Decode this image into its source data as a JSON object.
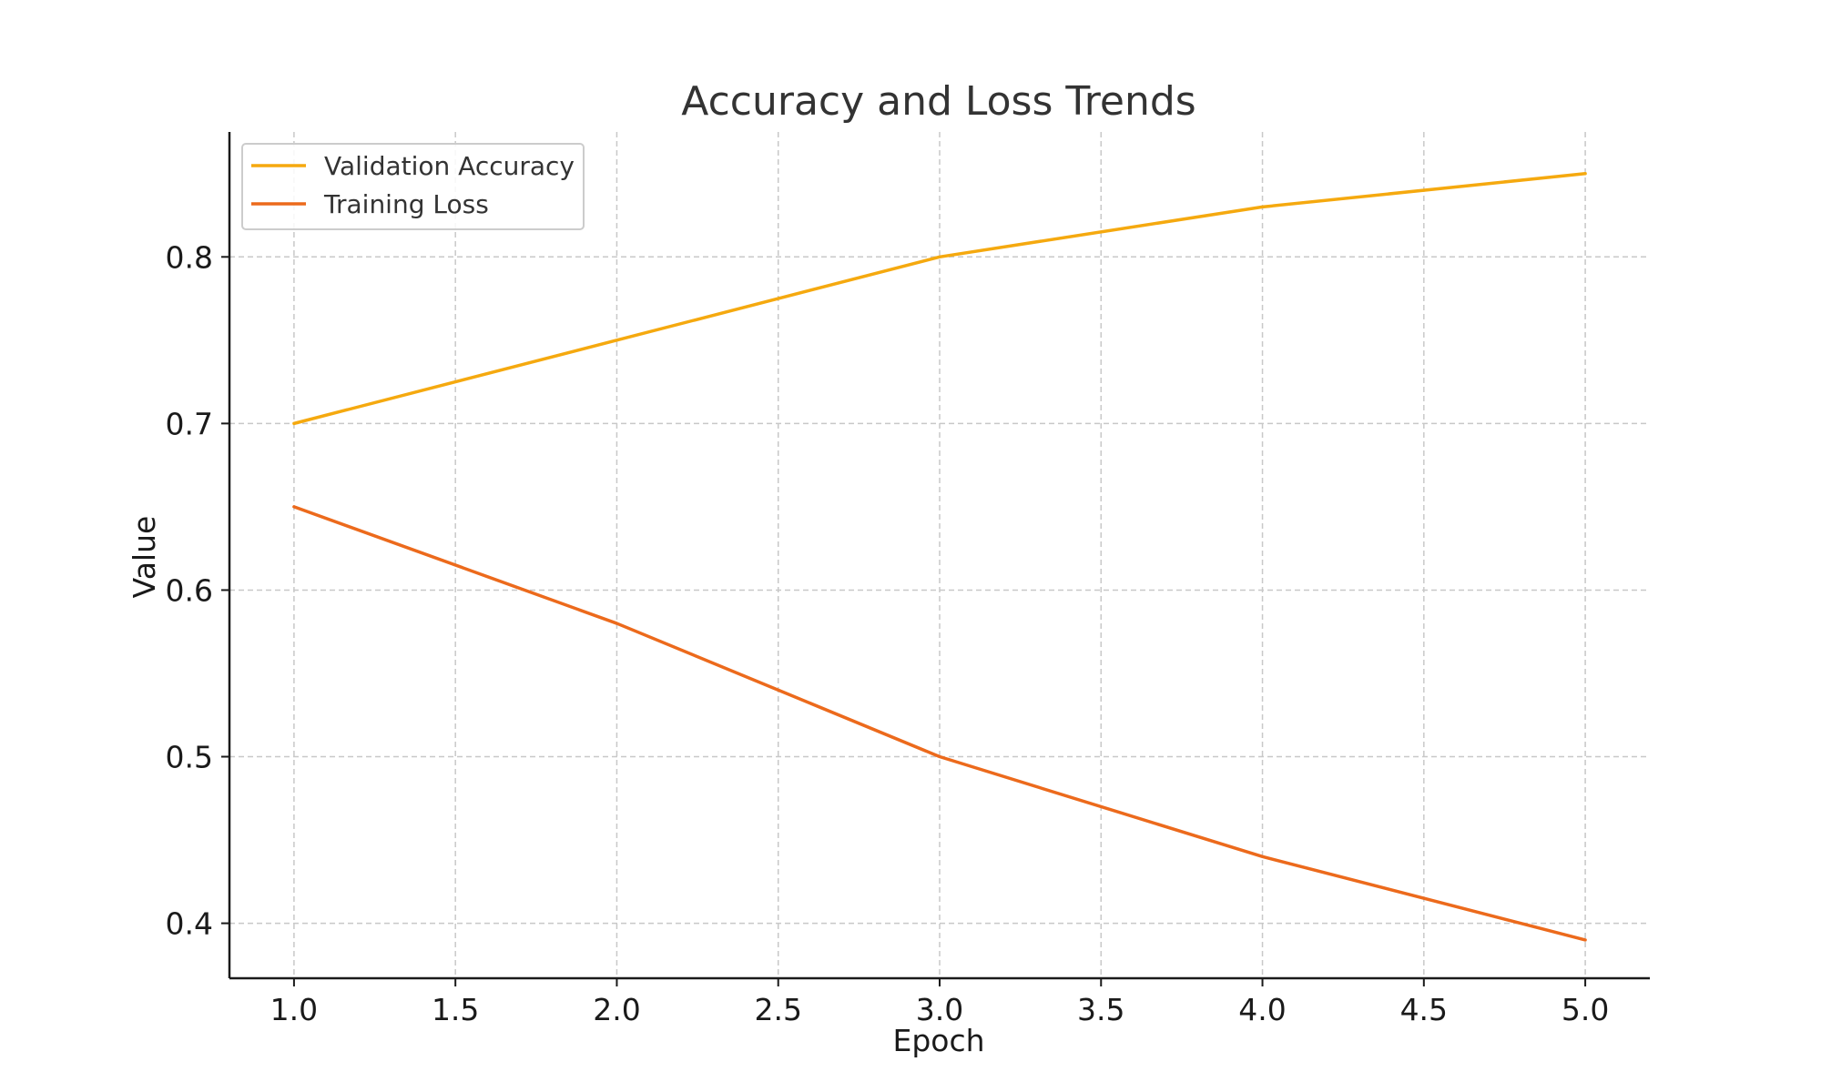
{
  "chart_data": {
    "type": "line",
    "title": "Accuracy and Loss Trends",
    "xlabel": "Epoch",
    "ylabel": "Value",
    "x": [
      1,
      2,
      3,
      4,
      5
    ],
    "xlim": [
      0.8,
      5.2
    ],
    "ylim": [
      0.367,
      0.875
    ],
    "xticks": [
      "1.0",
      "1.5",
      "2.0",
      "2.5",
      "3.0",
      "3.5",
      "4.0",
      "4.5",
      "5.0"
    ],
    "yticks": [
      "0.4",
      "0.5",
      "0.6",
      "0.7",
      "0.8"
    ],
    "grid": true,
    "legend_position": "top-left",
    "series": [
      {
        "name": "Validation Accuracy",
        "color": "#f5a90f",
        "values": [
          0.7,
          0.75,
          0.8,
          0.83,
          0.85
        ]
      },
      {
        "name": "Training Loss",
        "color": "#ec6a1c",
        "values": [
          0.65,
          0.58,
          0.5,
          0.44,
          0.39
        ]
      }
    ]
  }
}
